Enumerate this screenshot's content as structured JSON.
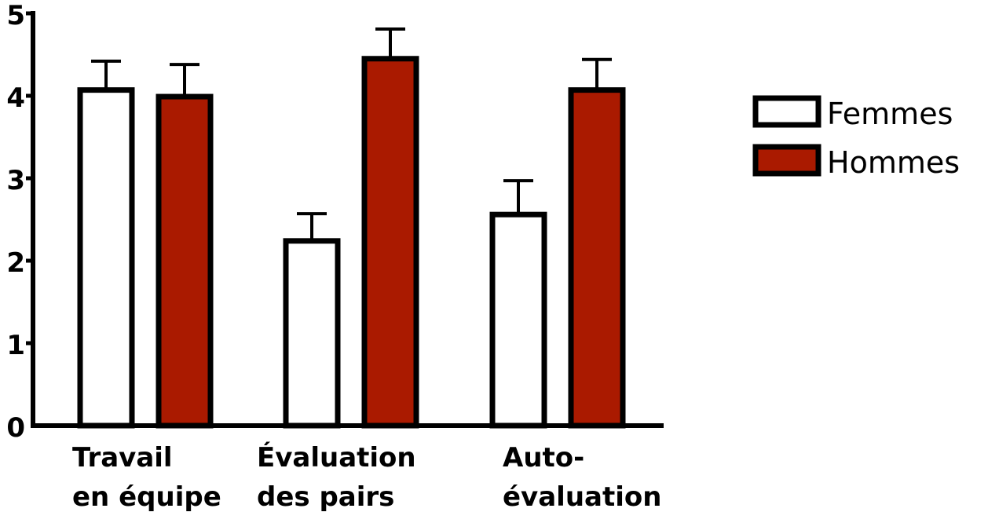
{
  "chart_data": {
    "type": "bar",
    "title": "",
    "xlabel": "",
    "ylabel": "",
    "ylim": [
      0,
      5
    ],
    "yticks": [
      "0",
      "1",
      "2",
      "3",
      "4",
      "5"
    ],
    "categories": [
      [
        "Travail",
        "en équipe"
      ],
      [
        "Évaluation",
        "des pairs"
      ],
      [
        "Auto-",
        "évaluation"
      ]
    ],
    "series": [
      {
        "name": "Femmes",
        "color": "#ffffff",
        "values": [
          4.07,
          2.24,
          2.56
        ],
        "errors": [
          0.35,
          0.33,
          0.41
        ]
      },
      {
        "name": "Hommes",
        "color": "#aa1a00",
        "values": [
          3.99,
          4.45,
          4.07
        ],
        "errors": [
          0.39,
          0.36,
          0.37
        ]
      }
    ],
    "grid": false,
    "legend_position": "right"
  }
}
